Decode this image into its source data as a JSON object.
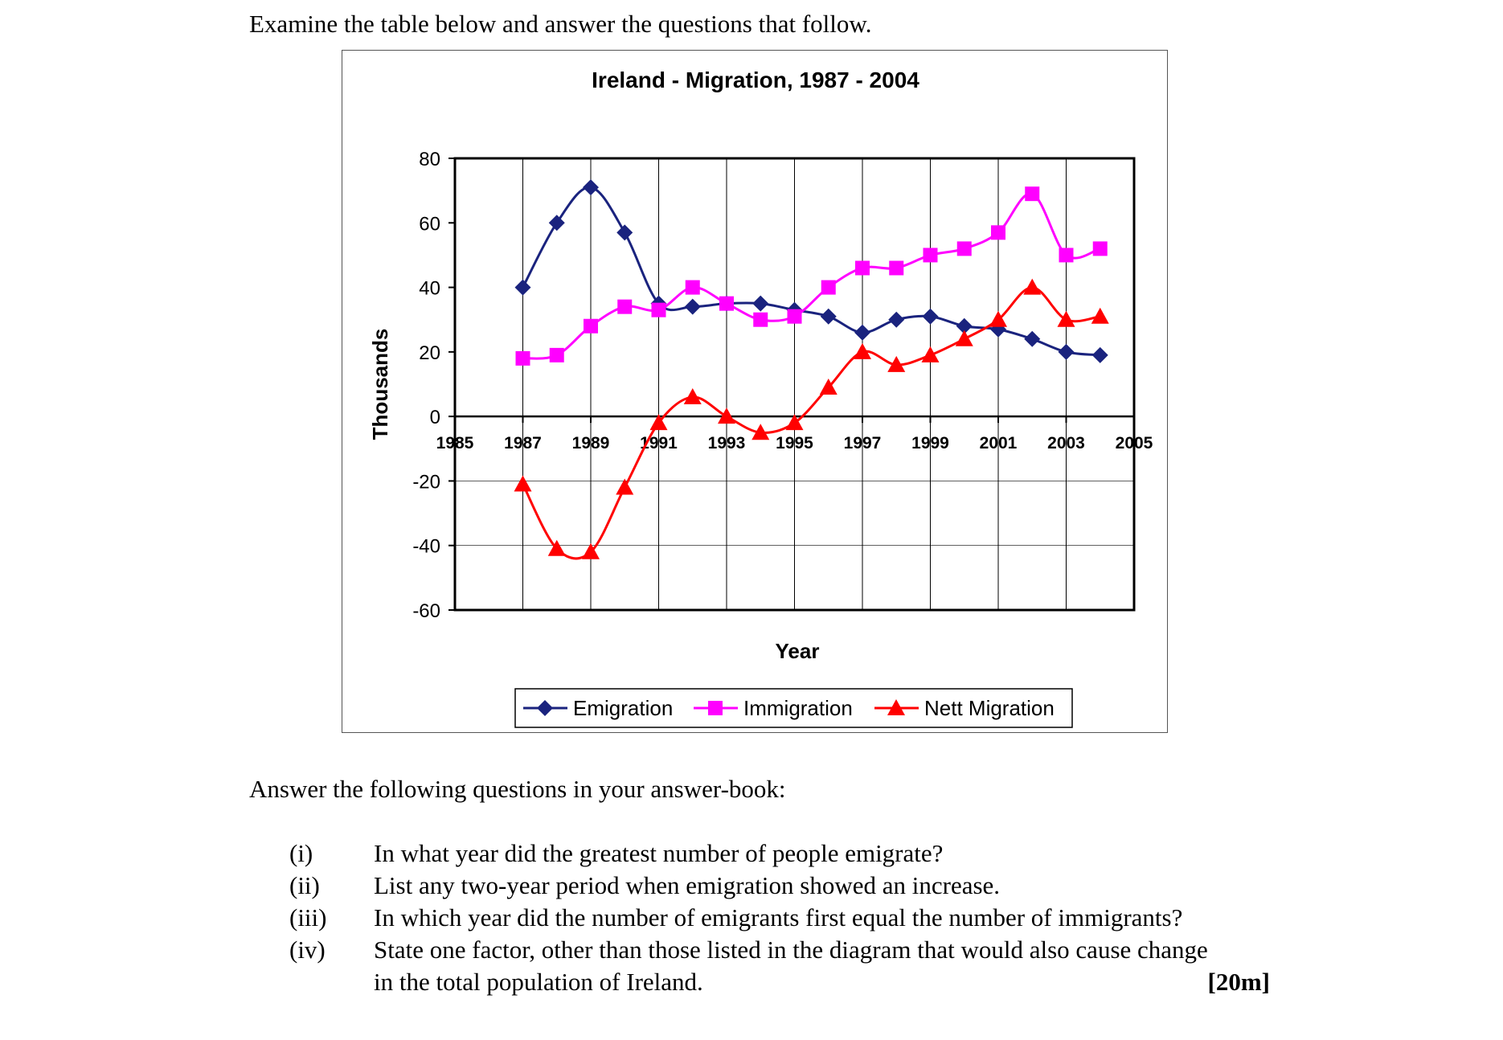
{
  "intro": "Examine the table below and answer the questions that follow.",
  "chart_data": {
    "type": "line",
    "title": "Ireland - Migration, 1987 - 2004",
    "xlabel": "Year",
    "ylabel": "Thousands",
    "xlim": [
      1985,
      2005
    ],
    "ylim": [
      -60,
      80
    ],
    "xticks": [
      1985,
      1987,
      1989,
      1991,
      1993,
      1995,
      1997,
      1999,
      2001,
      2003,
      2005
    ],
    "yticks": [
      80,
      60,
      40,
      20,
      0,
      -20,
      -40,
      -60
    ],
    "grid": "vertical",
    "legend": "bottom",
    "x": [
      1987,
      1988,
      1989,
      1990,
      1991,
      1992,
      1993,
      1994,
      1995,
      1996,
      1997,
      1998,
      1999,
      2000,
      2001,
      2002,
      2003,
      2004
    ],
    "series": [
      {
        "name": "Emigration",
        "color": "#1a237e",
        "marker": "diamond",
        "values": [
          40,
          60,
          71,
          57,
          35,
          34,
          35,
          35,
          33,
          31,
          26,
          30,
          31,
          28,
          27,
          24,
          20,
          19
        ]
      },
      {
        "name": "Immigration",
        "color": "#ff00ff",
        "marker": "square",
        "values": [
          18,
          19,
          28,
          34,
          33,
          40,
          35,
          30,
          31,
          40,
          46,
          46,
          50,
          52,
          57,
          69,
          50,
          52
        ]
      },
      {
        "name": "Nett Migration",
        "color": "#ff0000",
        "marker": "triangle",
        "values": [
          -21,
          -41,
          -42,
          -22,
          -2,
          6,
          0,
          -5,
          -2,
          9,
          20,
          16,
          19,
          24,
          30,
          40,
          30,
          31
        ]
      }
    ]
  },
  "questions_heading": "Answer the following questions in your answer-book:",
  "questions": [
    {
      "num": "(i)",
      "text": "In what year did the greatest number of people emigrate?"
    },
    {
      "num": "(ii)",
      "text": "List any two-year period when emigration showed an increase."
    },
    {
      "num": "(iii)",
      "text": "In which year did the number of emigrants first equal the number of immigrants?"
    },
    {
      "num": "(iv)",
      "text": "State one factor, other than those listed in the diagram that would also cause change in the total population of Ireland.",
      "marks": "[20m]"
    }
  ]
}
